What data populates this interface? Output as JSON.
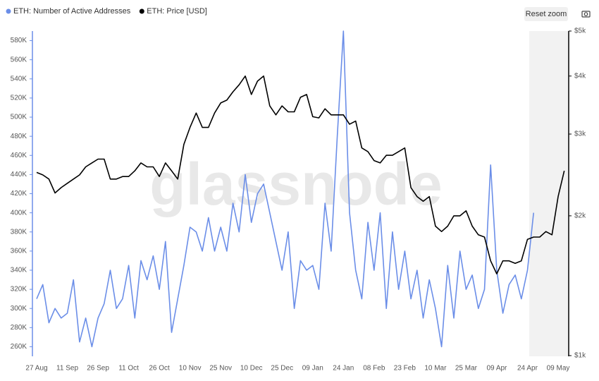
{
  "chart_data": {
    "type": "line",
    "watermark": "glassnode",
    "reset_zoom": "Reset zoom",
    "x": [
      "27 Aug",
      "30 Aug",
      "02 Sep",
      "05 Sep",
      "08 Sep",
      "11 Sep",
      "14 Sep",
      "17 Sep",
      "20 Sep",
      "23 Sep",
      "26 Sep",
      "29 Sep",
      "02 Oct",
      "05 Oct",
      "08 Oct",
      "11 Oct",
      "14 Oct",
      "17 Oct",
      "20 Oct",
      "23 Oct",
      "26 Oct",
      "29 Oct",
      "01 Nov",
      "04 Nov",
      "07 Nov",
      "10 Nov",
      "13 Nov",
      "16 Nov",
      "19 Nov",
      "22 Nov",
      "25 Nov",
      "28 Nov",
      "01 Dec",
      "04 Dec",
      "07 Dec",
      "10 Dec",
      "13 Dec",
      "16 Dec",
      "19 Dec",
      "22 Dec",
      "25 Dec",
      "28 Dec",
      "31 Dec",
      "03 Jan",
      "06 Jan",
      "09 Jan",
      "12 Jan",
      "15 Jan",
      "18 Jan",
      "21 Jan",
      "24 Jan",
      "27 Jan",
      "30 Jan",
      "02 Feb",
      "05 Feb",
      "08 Feb",
      "11 Feb",
      "14 Feb",
      "17 Feb",
      "20 Feb",
      "23 Feb",
      "26 Feb",
      "01 Mar",
      "04 Mar",
      "07 Mar",
      "10 Mar",
      "13 Mar",
      "16 Mar",
      "19 Mar",
      "22 Mar",
      "25 Mar",
      "28 Mar",
      "31 Mar",
      "03 Apr",
      "06 Apr",
      "09 Apr",
      "12 Apr",
      "15 Apr",
      "18 Apr",
      "21 Apr",
      "24 Apr",
      "27 Apr",
      "30 Apr",
      "03 May",
      "06 May",
      "09 May",
      "12 May"
    ],
    "xticks": [
      "27 Aug",
      "11 Sep",
      "26 Sep",
      "11 Oct",
      "26 Oct",
      "10 Nov",
      "25 Nov",
      "10 Dec",
      "25 Dec",
      "09 Jan",
      "24 Jan",
      "08 Feb",
      "23 Feb",
      "10 Mar",
      "25 Mar",
      "09 Apr",
      "24 Apr",
      "09 May"
    ],
    "series": [
      {
        "name": "ETH: Number of Active Addresses",
        "color": "#6b8ee8",
        "axis": "y",
        "values": [
          310000,
          325000,
          285000,
          300000,
          290000,
          295000,
          330000,
          265000,
          290000,
          260000,
          290000,
          305000,
          340000,
          300000,
          310000,
          345000,
          290000,
          350000,
          330000,
          355000,
          320000,
          370000,
          275000,
          310000,
          345000,
          385000,
          380000,
          360000,
          395000,
          360000,
          385000,
          360000,
          410000,
          380000,
          440000,
          390000,
          420000,
          430000,
          400000,
          370000,
          340000,
          380000,
          300000,
          350000,
          340000,
          345000,
          320000,
          410000,
          360000,
          480000,
          590000,
          400000,
          340000,
          310000,
          390000,
          340000,
          400000,
          300000,
          380000,
          320000,
          360000,
          310000,
          340000,
          290000,
          330000,
          300000,
          260000,
          345000,
          290000,
          360000,
          320000,
          335000,
          300000,
          320000,
          450000,
          340000,
          295000,
          325000,
          335000,
          310000,
          340000,
          400000,
          null,
          null,
          null,
          null,
          null
        ]
      },
      {
        "name": "ETH: Price [USD]",
        "color": "#000000",
        "axis": "y2",
        "values": [
          2480,
          2450,
          2400,
          2240,
          2300,
          2350,
          2400,
          2450,
          2550,
          2600,
          2650,
          2650,
          2400,
          2400,
          2430,
          2430,
          2500,
          2600,
          2550,
          2550,
          2430,
          2600,
          2500,
          2400,
          2850,
          3100,
          3330,
          3100,
          3100,
          3330,
          3500,
          3550,
          3700,
          3830,
          4000,
          3650,
          3900,
          4000,
          3450,
          3300,
          3450,
          3350,
          3350,
          3600,
          3650,
          3270,
          3250,
          3400,
          3300,
          3300,
          3300,
          3150,
          3200,
          2800,
          2750,
          2630,
          2600,
          2700,
          2700,
          2750,
          2800,
          2300,
          2200,
          2150,
          2200,
          1900,
          1850,
          1900,
          2000,
          2000,
          2050,
          1900,
          1820,
          1800,
          1600,
          1500,
          1600,
          1600,
          1580,
          1600,
          1780,
          1800,
          1800,
          1850,
          1820,
          2200,
          2500
        ]
      }
    ],
    "ylim": [
      250000,
      590000
    ],
    "yticks": [
      {
        "value": 260000,
        "label": "260K"
      },
      {
        "value": 280000,
        "label": "280K"
      },
      {
        "value": 300000,
        "label": "300K"
      },
      {
        "value": 320000,
        "label": "320K"
      },
      {
        "value": 340000,
        "label": "340K"
      },
      {
        "value": 360000,
        "label": "360K"
      },
      {
        "value": 380000,
        "label": "380K"
      },
      {
        "value": 400000,
        "label": "400K"
      },
      {
        "value": 420000,
        "label": "420K"
      },
      {
        "value": 440000,
        "label": "440K"
      },
      {
        "value": 460000,
        "label": "460K"
      },
      {
        "value": 480000,
        "label": "480K"
      },
      {
        "value": 500000,
        "label": "500K"
      },
      {
        "value": 520000,
        "label": "520K"
      },
      {
        "value": 540000,
        "label": "540K"
      },
      {
        "value": 560000,
        "label": "560K"
      },
      {
        "value": 580000,
        "label": "580K"
      }
    ],
    "y2lim": [
      1000,
      5000
    ],
    "y2scale": "log",
    "y2ticks": [
      {
        "value": 1000,
        "label": "$1k"
      },
      {
        "value": 2000,
        "label": "$2k"
      },
      {
        "value": 3000,
        "label": "$3k"
      },
      {
        "value": 4000,
        "label": "$4k"
      },
      {
        "value": 5000,
        "label": "$5k"
      }
    ],
    "grid": false
  }
}
